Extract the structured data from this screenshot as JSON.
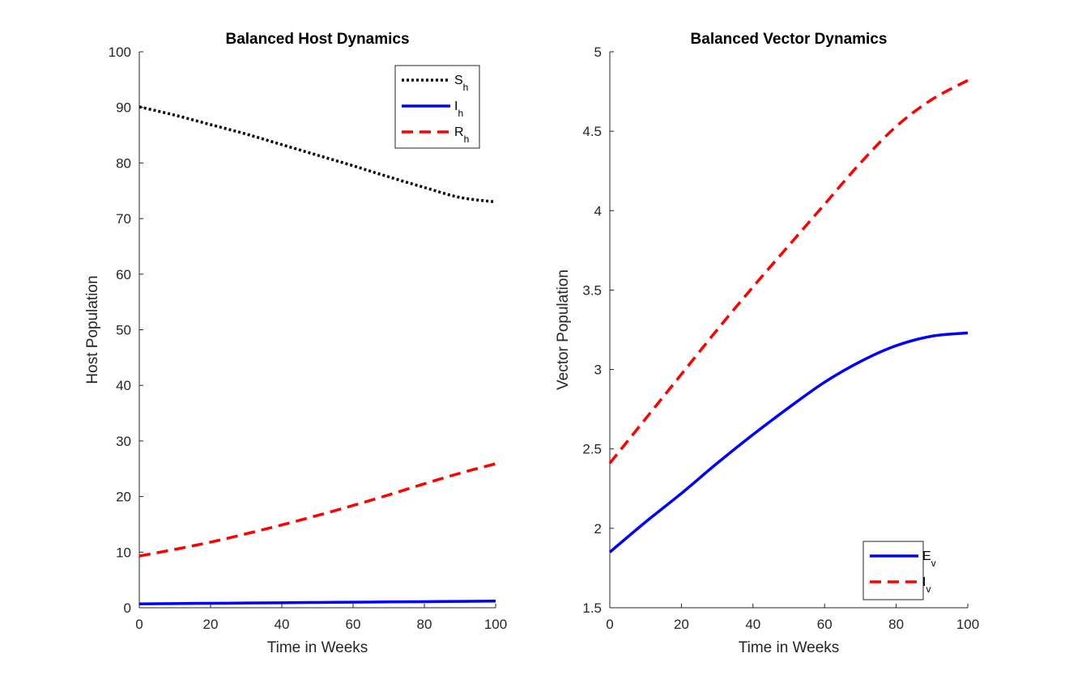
{
  "chart_data": [
    {
      "type": "line",
      "title": "Balanced Host Dynamics",
      "xlabel": "Time in Weeks",
      "ylabel": "Host Population",
      "xlim": [
        0,
        100
      ],
      "ylim": [
        0,
        100
      ],
      "xticks": [
        0,
        20,
        40,
        60,
        80,
        100
      ],
      "yticks": [
        0,
        10,
        20,
        30,
        40,
        50,
        60,
        70,
        80,
        90,
        100
      ],
      "grid": false,
      "legend_position": "top-right",
      "x": [
        0,
        10,
        20,
        30,
        40,
        50,
        60,
        70,
        80,
        90,
        100
      ],
      "series": [
        {
          "name": "S",
          "sub": "h",
          "color": "#000000",
          "dash": "dotted",
          "values": [
            90.1,
            88.6,
            86.9,
            85.2,
            83.3,
            81.4,
            79.5,
            77.5,
            75.6,
            73.8,
            73.0
          ]
        },
        {
          "name": "I",
          "sub": "h",
          "color": "#0000ff",
          "dash": "solid",
          "values": [
            0.7,
            0.75,
            0.8,
            0.85,
            0.9,
            0.95,
            1.0,
            1.05,
            1.1,
            1.15,
            1.2
          ]
        },
        {
          "name": "R",
          "sub": "h",
          "color": "#ff0000",
          "dash": "dashed",
          "values": [
            9.3,
            10.5,
            11.8,
            13.3,
            14.9,
            16.6,
            18.4,
            20.3,
            22.3,
            24.2,
            25.9
          ]
        }
      ]
    },
    {
      "type": "line",
      "title": "Balanced Vector Dynamics",
      "xlabel": "Time in Weeks",
      "ylabel": "Vector Population",
      "xlim": [
        0,
        100
      ],
      "ylim": [
        1.5,
        5
      ],
      "xticks": [
        0,
        20,
        40,
        60,
        80,
        100
      ],
      "yticks": [
        1.5,
        2,
        2.5,
        3,
        3.5,
        4,
        4.5,
        5
      ],
      "grid": false,
      "legend_position": "bottom-right",
      "x": [
        0,
        10,
        20,
        30,
        40,
        50,
        60,
        70,
        80,
        90,
        100
      ],
      "series": [
        {
          "name": "E",
          "sub": "v",
          "color": "#0000ff",
          "dash": "solid",
          "values": [
            1.85,
            2.04,
            2.22,
            2.41,
            2.59,
            2.76,
            2.92,
            3.05,
            3.15,
            3.21,
            3.23
          ]
        },
        {
          "name": "I",
          "sub": "v",
          "color": "#ff0000",
          "dash": "dashed",
          "values": [
            2.41,
            2.69,
            2.97,
            3.25,
            3.52,
            3.78,
            4.04,
            4.3,
            4.53,
            4.7,
            4.82
          ]
        }
      ]
    }
  ]
}
